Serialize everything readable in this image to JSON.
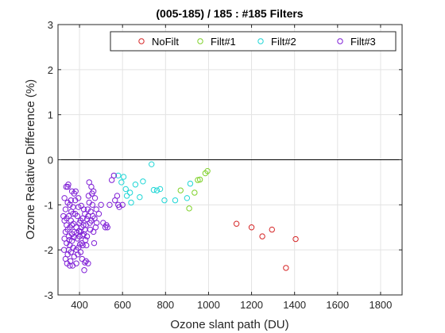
{
  "chart_data": {
    "type": "scatter",
    "title": "(005-185) / 185 : #185 Filters",
    "xlabel": "Ozone slant path (DU)",
    "ylabel": "Ozone Relative Difference (%)",
    "xlim": [
      300,
      1900
    ],
    "ylim": [
      -3,
      3
    ],
    "xticks": [
      400,
      600,
      800,
      1000,
      1200,
      1400,
      1600,
      1800
    ],
    "yticks": [
      -3,
      -2,
      -1,
      0,
      1,
      2,
      3
    ],
    "grid": true,
    "reference_line_y": 0,
    "legend_position": "top-right",
    "series": [
      {
        "name": "NoFilt",
        "color": "#d62728",
        "points": [
          [
            1130,
            -1.42
          ],
          [
            1200,
            -1.5
          ],
          [
            1250,
            -1.7
          ],
          [
            1295,
            -1.55
          ],
          [
            1360,
            -2.4
          ],
          [
            1405,
            -1.76
          ]
        ]
      },
      {
        "name": "Filt#1",
        "color": "#7fd12a",
        "points": [
          [
            870,
            -0.68
          ],
          [
            910,
            -1.08
          ],
          [
            935,
            -0.73
          ],
          [
            950,
            -0.45
          ],
          [
            960,
            -0.44
          ],
          [
            985,
            -0.3
          ],
          [
            995,
            -0.25
          ]
        ]
      },
      {
        "name": "Filt#2",
        "color": "#1fd6d6",
        "points": [
          [
            580,
            -0.35
          ],
          [
            595,
            -0.5
          ],
          [
            605,
            -0.38
          ],
          [
            615,
            -0.65
          ],
          [
            620,
            -0.8
          ],
          [
            635,
            -0.73
          ],
          [
            640,
            -0.95
          ],
          [
            660,
            -0.55
          ],
          [
            680,
            -0.83
          ],
          [
            695,
            -0.48
          ],
          [
            735,
            -0.1
          ],
          [
            745,
            -0.67
          ],
          [
            760,
            -0.68
          ],
          [
            775,
            -0.65
          ],
          [
            795,
            -0.9
          ],
          [
            845,
            -0.9
          ],
          [
            900,
            -0.85
          ],
          [
            915,
            -0.53
          ]
        ]
      },
      {
        "name": "Filt#3",
        "color": "#7f1fd6",
        "points": [
          [
            330,
            -0.85
          ],
          [
            335,
            -1.1
          ],
          [
            340,
            -1.3
          ],
          [
            345,
            -1.55
          ],
          [
            350,
            -1.7
          ],
          [
            355,
            -1.9
          ],
          [
            360,
            -2.05
          ],
          [
            365,
            -1.45
          ],
          [
            370,
            -1.2
          ],
          [
            375,
            -0.75
          ],
          [
            330,
            -1.35
          ],
          [
            335,
            -1.6
          ],
          [
            340,
            -1.85
          ],
          [
            345,
            -2.1
          ],
          [
            350,
            -1.25
          ],
          [
            355,
            -1.0
          ],
          [
            360,
            -0.9
          ],
          [
            365,
            -1.65
          ],
          [
            370,
            -1.95
          ],
          [
            375,
            -2.15
          ],
          [
            330,
            -1.75
          ],
          [
            335,
            -2.2
          ],
          [
            340,
            -1.45
          ],
          [
            345,
            -0.95
          ],
          [
            350,
            -2.0
          ],
          [
            355,
            -1.5
          ],
          [
            360,
            -1.35
          ],
          [
            365,
            -1.8
          ],
          [
            370,
            -1.05
          ],
          [
            375,
            -1.6
          ],
          [
            325,
            -1.25
          ],
          [
            328,
            -2.0
          ],
          [
            338,
            -0.6
          ],
          [
            342,
            -2.3
          ],
          [
            348,
            -0.55
          ],
          [
            352,
            -1.78
          ],
          [
            358,
            -2.25
          ],
          [
            362,
            -1.15
          ],
          [
            368,
            -2.35
          ],
          [
            372,
            -1.42
          ],
          [
            380,
            -1.2
          ],
          [
            385,
            -1.5
          ],
          [
            390,
            -1.75
          ],
          [
            395,
            -1.95
          ],
          [
            400,
            -1.4
          ],
          [
            405,
            -1.6
          ],
          [
            410,
            -1.85
          ],
          [
            415,
            -1.3
          ],
          [
            420,
            -1.1
          ],
          [
            425,
            -1.55
          ],
          [
            380,
            -0.9
          ],
          [
            385,
            -2.0
          ],
          [
            390,
            -1.25
          ],
          [
            395,
            -1.05
          ],
          [
            400,
            -1.7
          ],
          [
            405,
            -1.35
          ],
          [
            410,
            -1.5
          ],
          [
            415,
            -1.9
          ],
          [
            420,
            -1.65
          ],
          [
            425,
            -1.2
          ],
          [
            382,
            -0.7
          ],
          [
            388,
            -1.62
          ],
          [
            392,
            -2.1
          ],
          [
            398,
            -1.58
          ],
          [
            402,
            -1.88
          ],
          [
            408,
            -1.02
          ],
          [
            412,
            -2.2
          ],
          [
            418,
            -1.45
          ],
          [
            422,
            -2.45
          ],
          [
            428,
            -1.78
          ],
          [
            430,
            -1.45
          ],
          [
            435,
            -1.7
          ],
          [
            440,
            -1.25
          ],
          [
            445,
            -0.95
          ],
          [
            450,
            -1.55
          ],
          [
            455,
            -1.35
          ],
          [
            460,
            -1.0
          ],
          [
            465,
            -1.6
          ],
          [
            470,
            -1.3
          ],
          [
            475,
            -1.5
          ],
          [
            432,
            -1.9
          ],
          [
            438,
            -1.1
          ],
          [
            442,
            -0.8
          ],
          [
            448,
            -1.4
          ],
          [
            452,
            -1.15
          ],
          [
            458,
            -0.75
          ],
          [
            462,
            -1.25
          ],
          [
            468,
            -1.85
          ],
          [
            472,
            -0.85
          ],
          [
            478,
            -1.1
          ],
          [
            430,
            -2.25
          ],
          [
            440,
            -2.3
          ],
          [
            445,
            -0.5
          ],
          [
            455,
            -0.6
          ],
          [
            465,
            -0.7
          ],
          [
            480,
            -1.4
          ],
          [
            490,
            -1.2
          ],
          [
            500,
            -1.0
          ],
          [
            510,
            -1.4
          ],
          [
            520,
            -1.5
          ],
          [
            525,
            -1.45
          ],
          [
            540,
            -1.0
          ],
          [
            550,
            -0.45
          ],
          [
            560,
            -0.35
          ],
          [
            565,
            -0.9
          ],
          [
            575,
            -0.8
          ],
          [
            580,
            -1.0
          ],
          [
            585,
            -1.05
          ],
          [
            600,
            -1.0
          ],
          [
            530,
            -1.5
          ],
          [
            345,
            -0.6
          ],
          [
            355,
            -2.35
          ],
          [
            365,
            -0.7
          ],
          [
            375,
            -1.72
          ],
          [
            385,
            -2.3
          ],
          [
            395,
            -0.85
          ],
          [
            405,
            -2.05
          ],
          [
            415,
            -1.68
          ],
          [
            425,
            -2.28
          ],
          [
            435,
            -1.32
          ]
        ]
      }
    ]
  }
}
